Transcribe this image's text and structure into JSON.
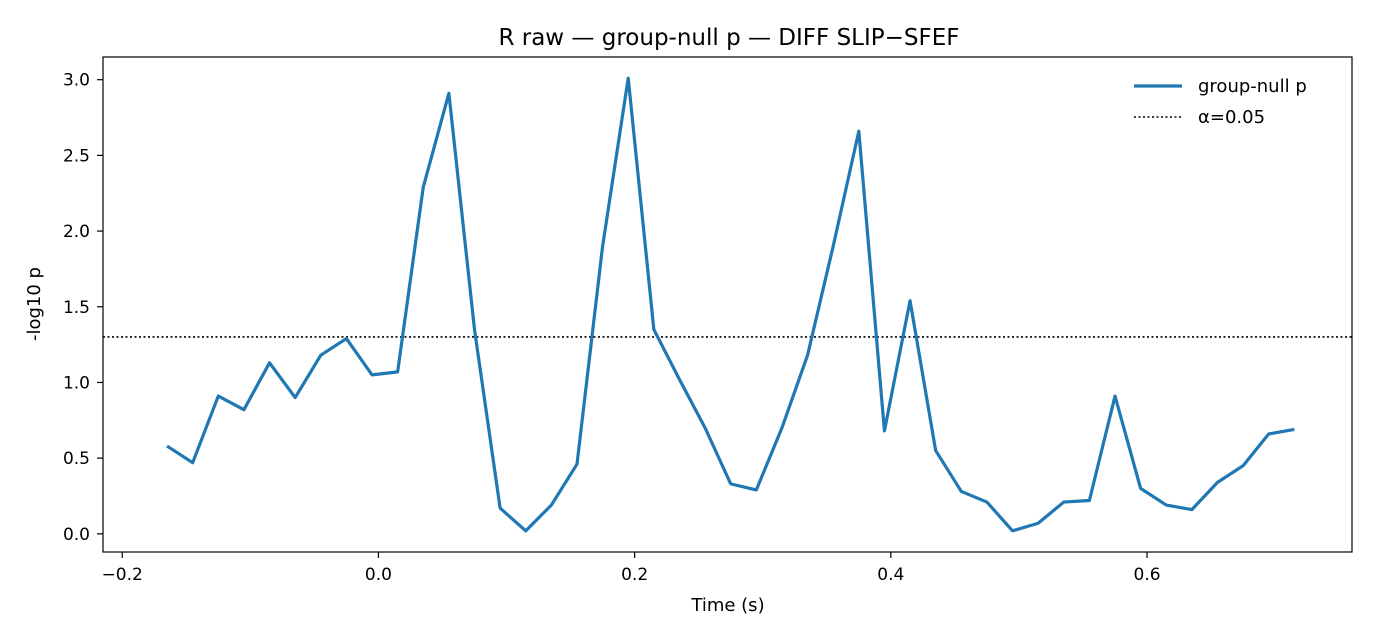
{
  "chart_data": {
    "type": "line",
    "title": "R raw — group-null p — DIFF SLIP−SFEF",
    "xlabel": "Time (s)",
    "ylabel": "-log10 p",
    "xlim": [
      -0.215,
      0.76
    ],
    "ylim": [
      -0.12,
      3.15
    ],
    "xticks": [
      -0.2,
      0.0,
      0.2,
      0.4,
      0.6
    ],
    "xtick_labels": [
      "−0.2",
      "0.0",
      "0.2",
      "0.4",
      "0.6"
    ],
    "yticks": [
      0.0,
      0.5,
      1.0,
      1.5,
      2.0,
      2.5,
      3.0
    ],
    "ytick_labels": [
      "0.0",
      "0.5",
      "1.0",
      "1.5",
      "2.0",
      "2.5",
      "3.0"
    ],
    "grid": false,
    "legend_position": "top-right",
    "series": [
      {
        "name": "group-null p",
        "color": "#1f77b4",
        "style": "solid",
        "x": [
          -0.165,
          -0.145,
          -0.125,
          -0.105,
          -0.085,
          -0.065,
          -0.045,
          -0.025,
          -0.005,
          0.015,
          0.035,
          0.055,
          0.075,
          0.095,
          0.115,
          0.135,
          0.155,
          0.175,
          0.195,
          0.215,
          0.235,
          0.255,
          0.275,
          0.295,
          0.315,
          0.335,
          0.355,
          0.375,
          0.395,
          0.415,
          0.435,
          0.455,
          0.475,
          0.495,
          0.515,
          0.535,
          0.555,
          0.575,
          0.595,
          0.615,
          0.635,
          0.655,
          0.675,
          0.695,
          0.715
        ],
        "y": [
          0.58,
          0.47,
          0.91,
          0.82,
          1.13,
          0.9,
          1.18,
          1.29,
          1.05,
          1.07,
          2.29,
          2.91,
          1.35,
          0.17,
          0.02,
          0.19,
          0.46,
          1.9,
          3.01,
          1.35,
          1.02,
          0.7,
          0.33,
          0.29,
          0.7,
          1.18,
          1.9,
          2.66,
          0.68,
          1.54,
          0.55,
          0.28,
          0.21,
          0.02,
          0.07,
          0.21,
          0.22,
          0.91,
          0.3,
          0.19,
          0.16,
          0.34,
          0.45,
          0.66,
          0.69
        ]
      },
      {
        "name": "α=0.05",
        "color": "#000000",
        "style": "dotted",
        "hline": 1.301
      }
    ]
  }
}
